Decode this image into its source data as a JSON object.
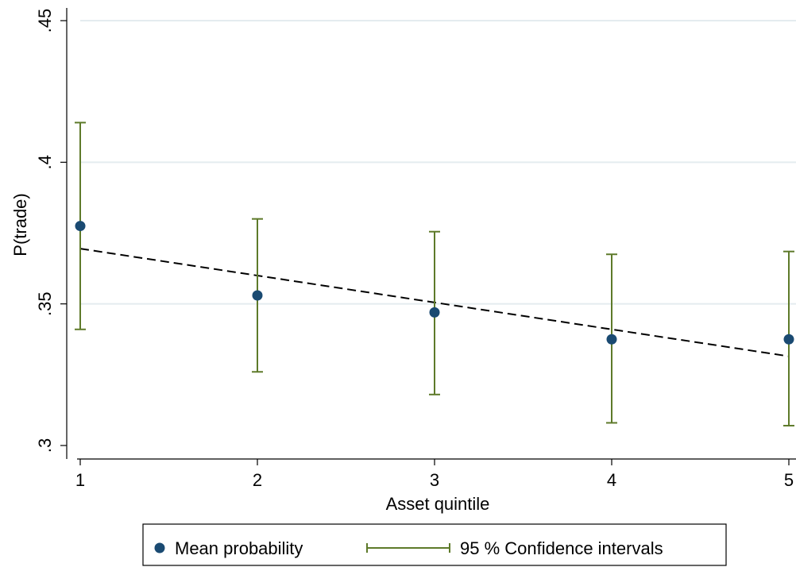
{
  "chart_data": {
    "type": "scatter",
    "xlabel": "Asset quintile",
    "ylabel": "P(trade)",
    "x_ticks": [
      "1",
      "2",
      "3",
      "4",
      "5"
    ],
    "y_ticks": [
      ".3",
      ".35",
      ".4",
      ".45"
    ],
    "xlim": [
      1,
      5
    ],
    "ylim": [
      0.3,
      0.45
    ],
    "grid": "horizontal",
    "legend_position": "bottom",
    "series": [
      {
        "name": "Mean probability",
        "x": [
          1,
          2,
          3,
          4,
          5
        ],
        "values": [
          0.3775,
          0.353,
          0.347,
          0.3375,
          0.3375
        ],
        "color": "#1a4a72"
      },
      {
        "name": "95 % Confidence intervals",
        "x": [
          1,
          2,
          3,
          4,
          5
        ],
        "lower": [
          0.341,
          0.326,
          0.318,
          0.308,
          0.307
        ],
        "upper": [
          0.414,
          0.38,
          0.3755,
          0.3675,
          0.3685
        ],
        "color": "#5e7a2a"
      }
    ],
    "fit_line": {
      "style": "dashed",
      "x": [
        1,
        5
      ],
      "y": [
        0.3695,
        0.3315
      ],
      "color": "#000000"
    }
  }
}
